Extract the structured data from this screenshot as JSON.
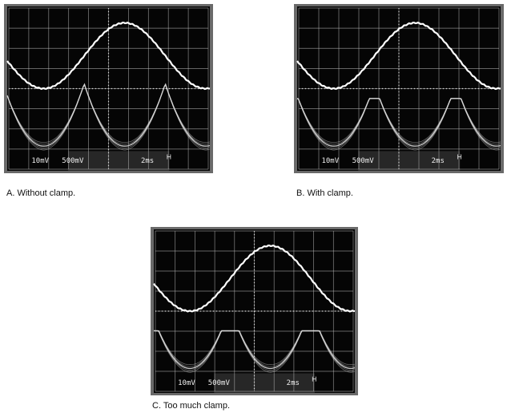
{
  "panels": [
    {
      "caption": "A. Without clamp.",
      "readout": [
        "10mV",
        "500mV",
        "2ms"
      ]
    },
    {
      "caption": "B. With clamp.",
      "readout": [
        "10mV",
        "500mV",
        "2ms"
      ]
    },
    {
      "caption": "C. Too much clamp.",
      "readout": [
        "10mV",
        "500mV",
        "2ms"
      ]
    }
  ]
}
